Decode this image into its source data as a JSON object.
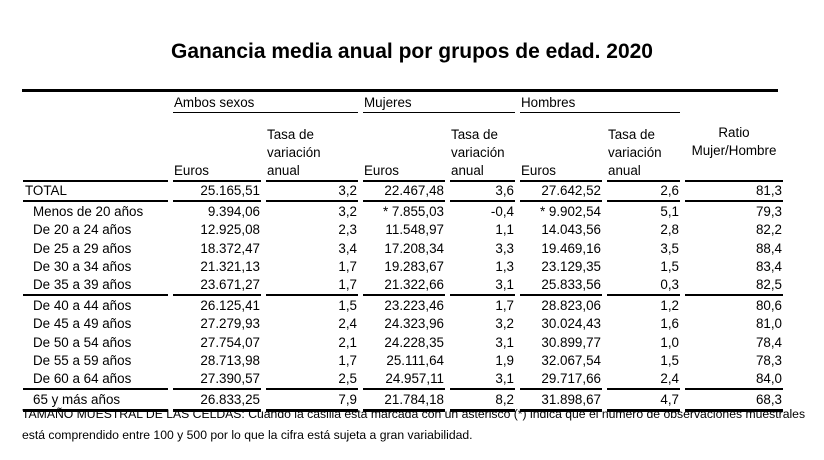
{
  "title": "Ganancia media anual por grupos de edad. 2020",
  "groups": {
    "ambos": "Ambos sexos",
    "mujeres": "Mujeres",
    "hombres": "Hombres"
  },
  "headers": {
    "euros": "Euros",
    "tasa": "Tasa de variación anual",
    "ratio": "Ratio Mujer/Hombre"
  },
  "rows": [
    {
      "label": "TOTAL",
      "values": [
        "25.165,51",
        "3,2",
        "22.467,48",
        "3,6",
        "27.642,52",
        "2,6",
        "81,3"
      ]
    },
    {
      "label": "Menos de 20 años",
      "values": [
        "9.394,06",
        "3,2",
        "* 7.855,03",
        "-0,4",
        "* 9.902,54",
        "5,1",
        "79,3"
      ]
    },
    {
      "label": "De 20 a 24 años",
      "values": [
        "12.925,08",
        "2,3",
        "11.548,97",
        "1,1",
        "14.043,56",
        "2,8",
        "82,2"
      ]
    },
    {
      "label": "De 25 a 29 años",
      "values": [
        "18.372,47",
        "3,4",
        "17.208,34",
        "3,3",
        "19.469,16",
        "3,5",
        "88,4"
      ]
    },
    {
      "label": "De 30 a 34 años",
      "values": [
        "21.321,13",
        "1,7",
        "19.283,67",
        "1,3",
        "23.129,35",
        "1,5",
        "83,4"
      ]
    },
    {
      "label": "De 35 a 39 años",
      "values": [
        "23.671,27",
        "1,7",
        "21.322,66",
        "3,1",
        "25.833,56",
        "0,3",
        "82,5"
      ]
    },
    {
      "label": "De 40 a 44 años",
      "values": [
        "26.125,41",
        "1,5",
        "23.223,46",
        "1,7",
        "28.823,06",
        "1,2",
        "80,6"
      ]
    },
    {
      "label": "De 45 a 49 años",
      "values": [
        "27.279,93",
        "2,4",
        "24.323,96",
        "3,2",
        "30.024,43",
        "1,6",
        "81,0"
      ]
    },
    {
      "label": "De 50 a 54 años",
      "values": [
        "27.754,07",
        "2,1",
        "24.228,35",
        "3,1",
        "30.899,77",
        "1,0",
        "78,4"
      ]
    },
    {
      "label": "De 55 a 59 años",
      "values": [
        "28.713,98",
        "1,7",
        "25.111,64",
        "1,9",
        "32.067,54",
        "1,5",
        "78,3"
      ]
    },
    {
      "label": "De 60 a 64 años",
      "values": [
        "27.390,57",
        "2,5",
        "24.957,11",
        "3,1",
        "29.717,66",
        "2,4",
        "84,0"
      ]
    },
    {
      "label": "65 y más años",
      "values": [
        "26.833,25",
        "7,9",
        "21.784,18",
        "8,2",
        "31.898,67",
        "4,7",
        "68,3"
      ]
    }
  ],
  "note": "TAMAÑO MUESTRAL DE LAS CELDAS: Cuando la casilla esta marcada con un asterisco (*) indica que el número de observaciones muestrales está comprendido entre 100 y 500 por lo que la cifra está sujeta a gran variabilidad."
}
